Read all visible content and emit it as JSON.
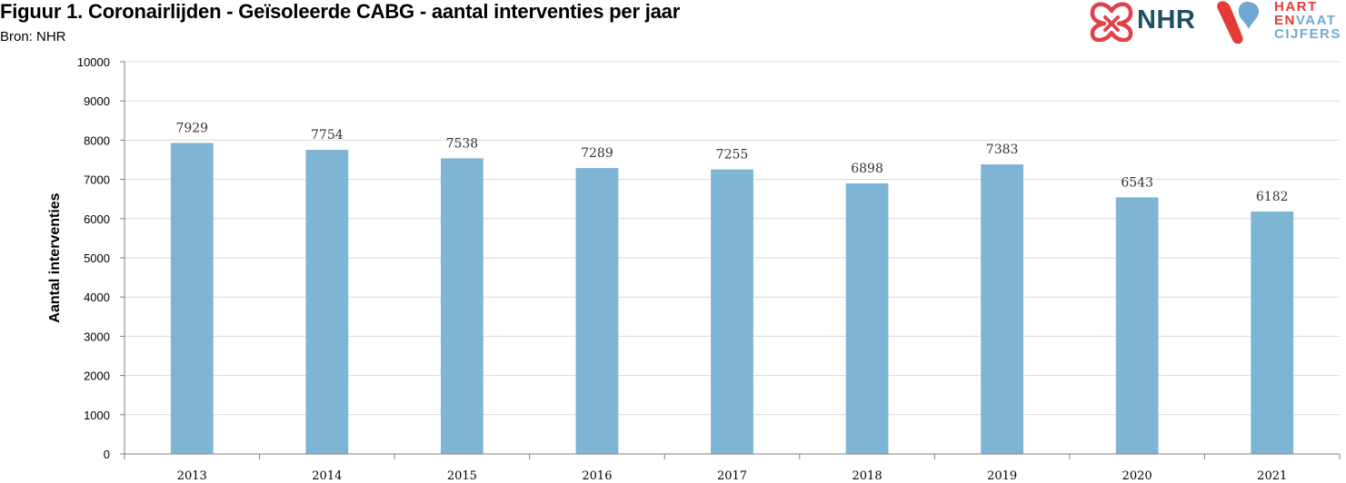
{
  "header": {
    "title": "Figuur 1. Coronairlijden - Geïsoleerde CABG - aantal interventies per jaar",
    "source": "Bron: NHR"
  },
  "logos": {
    "nhr_text": "NHR",
    "hart_line1": "HART",
    "hart_line2_a": "EN",
    "hart_line2_b": "VAAT",
    "hart_line3": "CIJFERS"
  },
  "colors": {
    "bar": "#7fb5d4",
    "axis": "#808080",
    "nhr_red": "#e0424b",
    "nhr_navy": "#1f4f63",
    "hart_red": "#e63a36",
    "hart_blue": "#6fa9d1"
  },
  "chart_data": {
    "type": "bar",
    "title": "Figuur 1. Coronairlijden - Geïsoleerde CABG - aantal interventies per jaar",
    "xlabel": "",
    "ylabel": "Aantal interventies",
    "categories": [
      "2013",
      "2014",
      "2015",
      "2016",
      "2017",
      "2018",
      "2019",
      "2020",
      "2021"
    ],
    "values": [
      7929,
      7754,
      7538,
      7289,
      7255,
      6898,
      7383,
      6543,
      6182
    ],
    "ylim": [
      0,
      10000
    ],
    "yticks": [
      0,
      1000,
      2000,
      3000,
      4000,
      5000,
      6000,
      7000,
      8000,
      9000,
      10000
    ],
    "grid": true,
    "legend": "none",
    "data_labels": true
  }
}
